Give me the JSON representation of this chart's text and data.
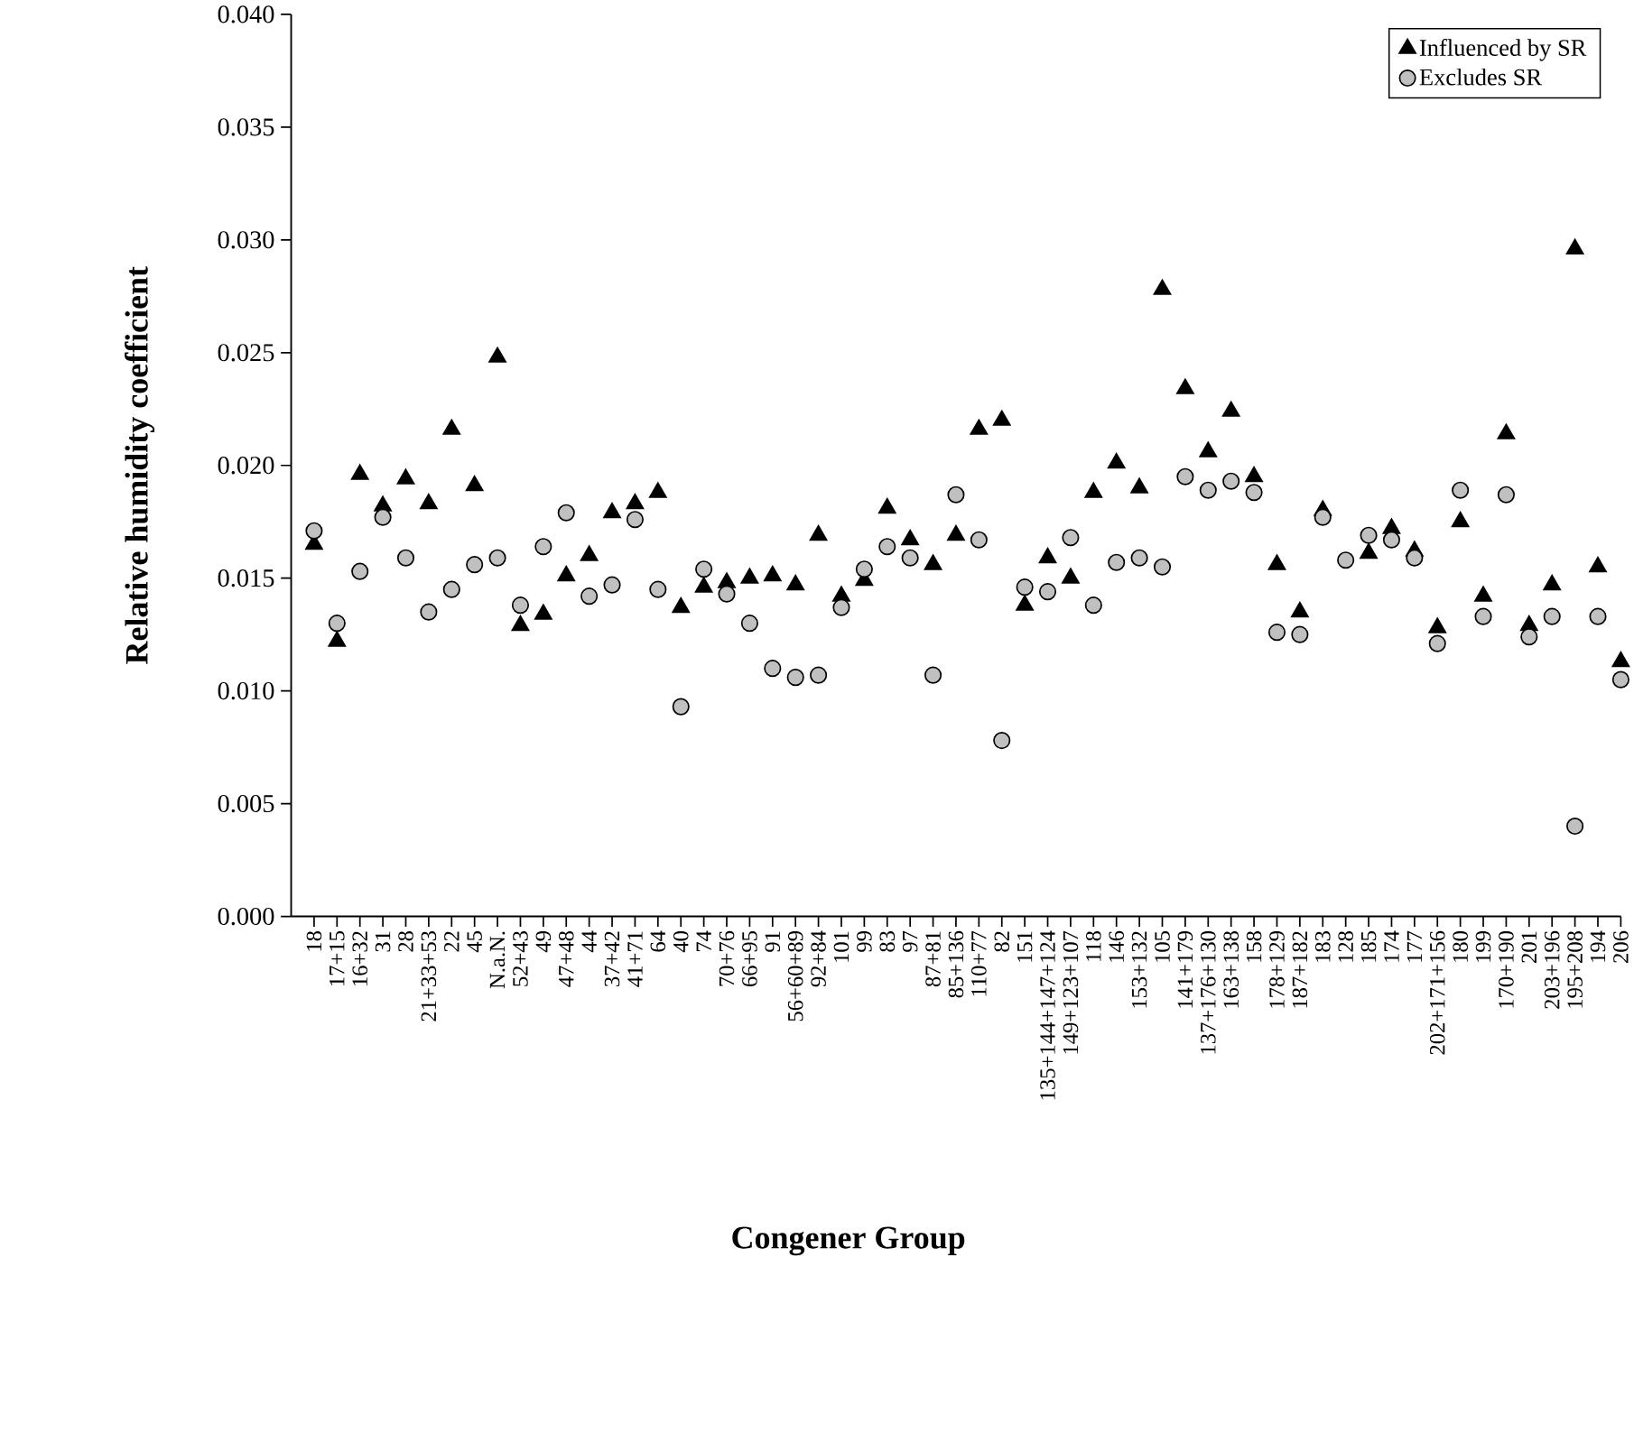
{
  "chart_data": {
    "type": "scatter",
    "xlabel": "Congener Group",
    "ylabel": "Relative humidity coefficient",
    "categories": [
      "18",
      "17+15",
      "16+32",
      "31",
      "28",
      "21+33+53",
      "22",
      "45",
      "N.a.N.",
      "52+43",
      "49",
      "47+48",
      "44",
      "37+42",
      "41+71",
      "64",
      "40",
      "74",
      "70+76",
      "66+95",
      "91",
      "56+60+89",
      "92+84",
      "101",
      "99",
      "83",
      "97",
      "87+81",
      "85+136",
      "110+77",
      "82",
      "151",
      "135+144+147+124",
      "149+123+107",
      "118",
      "146",
      "153+132",
      "105",
      "141+179",
      "137+176+130",
      "163+138",
      "158",
      "178+129",
      "187+182",
      "183",
      "128",
      "185",
      "174",
      "177",
      "202+171+156",
      "180",
      "199",
      "170+190",
      "201",
      "203+196",
      "195+208",
      "194",
      "206"
    ],
    "series": [
      {
        "name": "Influenced by SR",
        "color": "#000000",
        "marker": "triangle",
        "values": [
          0.0165,
          0.0122,
          0.0196,
          0.0182,
          0.0194,
          0.0183,
          0.0216,
          0.0191,
          0.0248,
          0.0129,
          0.0134,
          0.0151,
          0.016,
          0.0179,
          0.0183,
          0.0188,
          0.0137,
          0.0146,
          0.0148,
          0.015,
          0.0151,
          0.0147,
          0.0169,
          0.0142,
          0.0149,
          0.0181,
          0.0167,
          0.0156,
          0.0169,
          0.0216,
          0.022,
          0.0138,
          0.0159,
          0.015,
          0.0188,
          0.0201,
          0.019,
          0.0278,
          0.0234,
          0.0206,
          0.0224,
          0.0195,
          0.0156,
          0.0135,
          0.018,
          null,
          0.0161,
          0.0172,
          0.0162,
          0.0128,
          0.0175,
          0.0142,
          0.0214,
          0.0129,
          0.0147,
          0.0296,
          0.0155,
          0.0113
        ]
      },
      {
        "name": "Excludes SR",
        "color": "#c0c0c0",
        "marker": "circle",
        "values": [
          0.0171,
          0.013,
          0.0153,
          0.0177,
          0.0159,
          0.0135,
          0.0145,
          0.0156,
          0.0159,
          0.0138,
          0.0164,
          0.0179,
          0.0142,
          0.0147,
          0.0176,
          0.0145,
          0.0093,
          0.0154,
          0.0143,
          0.013,
          0.011,
          0.0106,
          0.0107,
          0.0137,
          0.0154,
          0.0164,
          0.0159,
          0.0107,
          0.0187,
          0.0167,
          0.0078,
          0.0146,
          0.0144,
          0.0168,
          0.0138,
          0.0157,
          0.0159,
          0.0155,
          0.0195,
          0.0189,
          0.0193,
          0.0188,
          0.0126,
          0.0125,
          0.0177,
          0.0158,
          0.0169,
          0.0167,
          0.0159,
          0.0121,
          0.0189,
          0.0133,
          0.0187,
          0.0124,
          0.0133,
          0.004,
          0.0133,
          0.0105
        ]
      }
    ],
    "ylim": [
      0,
      0.04
    ],
    "yticks": [
      {
        "value": 0,
        "label": "0.000"
      },
      {
        "value": 0.005,
        "label": "0.005"
      },
      {
        "value": 0.01,
        "label": "0.010"
      },
      {
        "value": 0.015,
        "label": "0.015"
      },
      {
        "value": 0.02,
        "label": "0.020"
      },
      {
        "value": 0.025,
        "label": "0.025"
      },
      {
        "value": 0.03,
        "label": "0.030"
      },
      {
        "value": 0.035,
        "label": "0.035"
      },
      {
        "value": 0.04,
        "label": "0.040"
      }
    ],
    "legend": "top right",
    "grid": false
  }
}
